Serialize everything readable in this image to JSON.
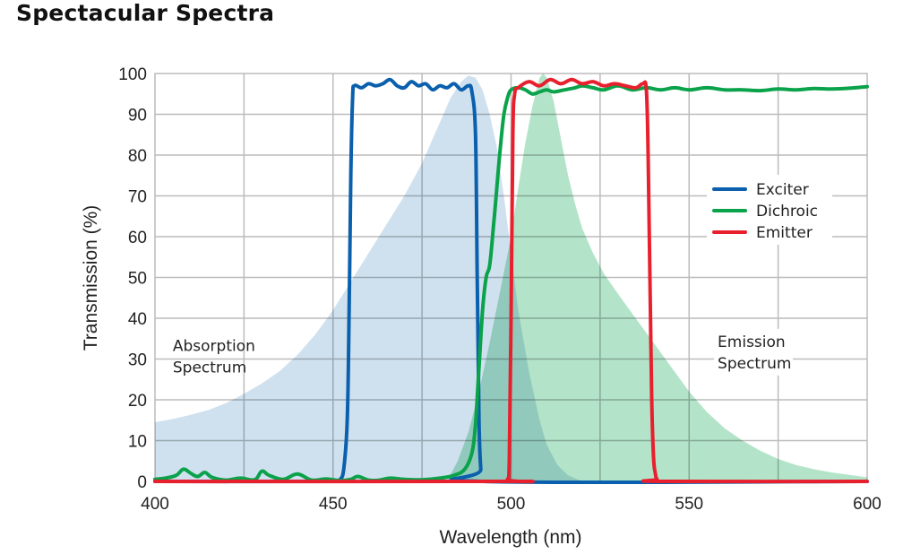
{
  "title": "Spectacular Spectra",
  "chart_data": {
    "type": "line",
    "title": "Spectacular Spectra",
    "xlabel": "Wavelength (nm)",
    "ylabel": "Transmission (%)",
    "xlim": [
      400,
      600
    ],
    "ylim": [
      0,
      100
    ],
    "xticks": [
      400,
      450,
      500,
      550,
      600
    ],
    "yticks": [
      0,
      10,
      20,
      30,
      40,
      50,
      60,
      70,
      80,
      90,
      100
    ],
    "xgrid_step": 25,
    "grid": true,
    "legend": {
      "placement": "center-right",
      "entries": [
        "Exciter",
        "Dichroic",
        "Emitter"
      ]
    },
    "annotations": [
      {
        "text_lines": [
          "Absorption",
          "Spectrum"
        ],
        "x": 405,
        "y": 32
      },
      {
        "text_lines": [
          "Emission",
          "Spectrum"
        ],
        "x": 558,
        "y": 33
      }
    ],
    "areas": [
      {
        "name": "Absorption Spectrum",
        "color": "#c7dcec",
        "x": [
          400,
          405,
          410,
          415,
          420,
          425,
          430,
          435,
          440,
          445,
          450,
          455,
          460,
          465,
          470,
          475,
          480,
          483,
          486,
          488,
          490,
          492,
          494,
          496,
          498,
          500,
          502,
          505,
          508,
          510,
          513,
          516,
          520
        ],
        "y": [
          14.5,
          15.3,
          16.3,
          17.5,
          19.2,
          21.5,
          24,
          27,
          31,
          36,
          42,
          49,
          56,
          63,
          70,
          78,
          88,
          94,
          98,
          99.5,
          99,
          96,
          90,
          82,
          70,
          56,
          42,
          27,
          15,
          9,
          4,
          1.5,
          0
        ]
      },
      {
        "name": "Emission Spectrum",
        "color": "#a6dfc0",
        "x": [
          482,
          485,
          488,
          491,
          494,
          497,
          500,
          502,
          504,
          506,
          508,
          509,
          510,
          512,
          514,
          516,
          518,
          520,
          523,
          526,
          530,
          535,
          540,
          545,
          550,
          555,
          560,
          565,
          570,
          575,
          580,
          585,
          590,
          595,
          600
        ],
        "y": [
          0,
          5,
          12,
          22,
          34,
          47,
          60,
          72,
          83,
          92,
          99,
          100,
          99,
          93,
          84,
          75,
          68,
          62,
          56,
          51,
          46,
          40,
          34,
          28,
          22,
          17,
          13,
          10,
          7.5,
          5.5,
          4,
          3,
          2.2,
          1.6,
          1
        ]
      }
    ],
    "series": [
      {
        "name": "Exciter",
        "color": "#0a60ad",
        "x": [
          400,
          451,
          452,
          453,
          454,
          454.5,
          455,
          455.5,
          456,
          458,
          460,
          462,
          464,
          466,
          468,
          470,
          472,
          474,
          476,
          478,
          480,
          482,
          484,
          486,
          488,
          489,
          490,
          490.5,
          491,
          491.5,
          492,
          600
        ],
        "y": [
          0,
          0,
          0.5,
          3,
          15,
          40,
          75,
          94,
          97,
          96.5,
          97.5,
          97,
          97.5,
          98.5,
          97,
          96.5,
          98,
          97,
          97.5,
          96,
          97,
          96.5,
          97.5,
          96,
          97,
          95.5,
          85,
          50,
          15,
          3,
          0,
          0
        ]
      },
      {
        "name": "Dichroic",
        "color": "#0aa24a",
        "x": [
          400,
          403,
          406,
          408,
          410,
          412,
          414,
          416,
          420,
          424,
          428,
          430,
          432,
          436,
          440,
          444,
          448,
          452,
          455,
          457,
          460,
          463,
          466,
          470,
          475,
          480,
          484,
          487,
          489,
          490,
          491,
          492,
          493,
          494,
          495,
          496,
          497,
          498,
          499,
          500,
          502,
          504,
          506,
          508,
          510,
          512,
          515,
          518,
          520,
          523,
          526,
          530,
          534,
          538,
          542,
          546,
          550,
          555,
          560,
          565,
          570,
          575,
          580,
          585,
          590,
          595,
          600
        ],
        "y": [
          0.5,
          0.8,
          1.5,
          3,
          2,
          1.2,
          2.2,
          1,
          0.3,
          0.8,
          0.4,
          2.5,
          1.5,
          0.5,
          1.8,
          0.3,
          0.6,
          0.2,
          0.5,
          1.2,
          0.3,
          0.3,
          0.8,
          0.5,
          0.4,
          0.8,
          1.5,
          3,
          7,
          14,
          28,
          42,
          50,
          53,
          62,
          72,
          82,
          90,
          94,
          96,
          96.5,
          96,
          95,
          95.5,
          96,
          95.5,
          96,
          96.5,
          97,
          96.5,
          96,
          97,
          96,
          96.5,
          96,
          96.5,
          96,
          96.5,
          96,
          96,
          95.8,
          96.2,
          96,
          96.3,
          96.2,
          96.4,
          96.8
        ]
      },
      {
        "name": "Emitter",
        "color": "#e8202e",
        "x": [
          400,
          498,
          499,
          499.5,
          500,
          500.5,
          501,
          502,
          505,
          508,
          511,
          514,
          517,
          520,
          523,
          526,
          529,
          532,
          535,
          537,
          538,
          538.5,
          539,
          539.5,
          540,
          540.5,
          541,
          542,
          600
        ],
        "y": [
          0,
          0,
          0.5,
          5,
          40,
          85,
          95,
          96.5,
          98,
          97,
          98.5,
          97.5,
          98.5,
          97.5,
          98,
          97,
          97.5,
          97,
          96.5,
          97.5,
          96,
          80,
          50,
          20,
          6,
          2,
          0.5,
          0,
          0
        ]
      }
    ]
  }
}
